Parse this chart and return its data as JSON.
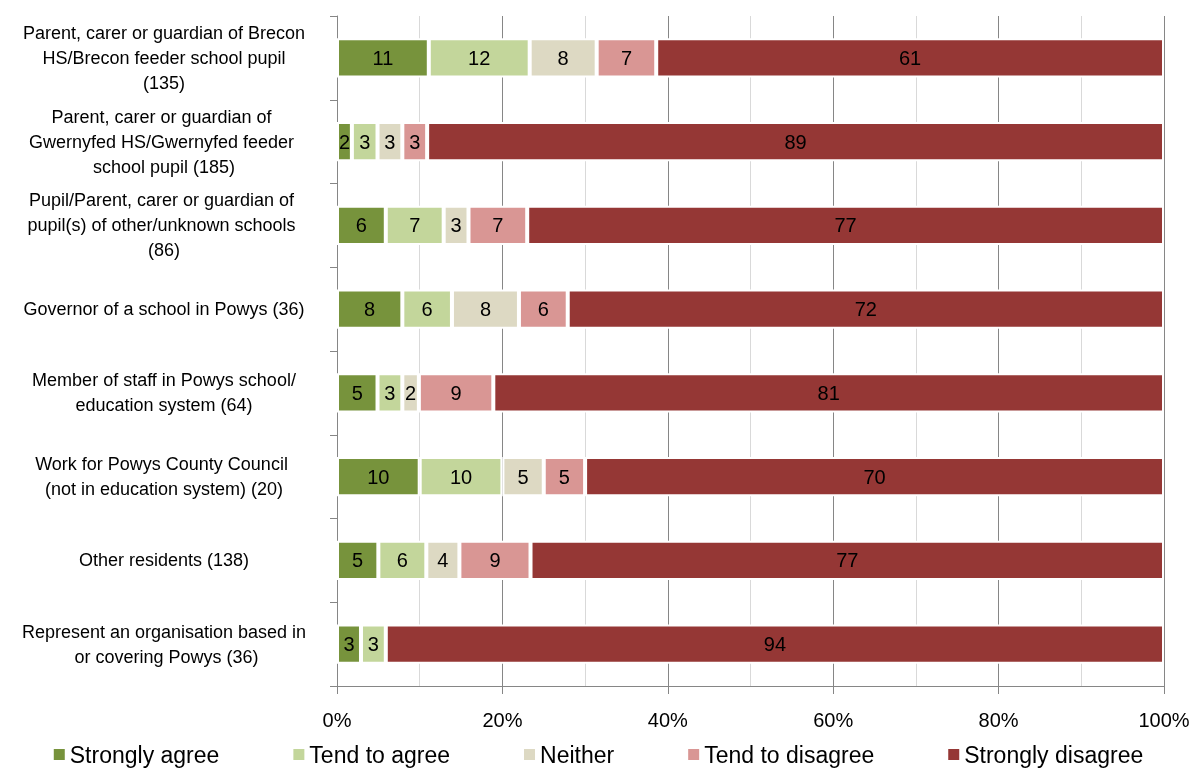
{
  "chart_data": {
    "type": "bar",
    "orientation": "horizontal",
    "stacked": true,
    "categories": [
      "Parent, carer or guardian of Brecon HS/Brecon feeder school pupil (135)",
      "Parent, carer or guardian of Gwernyfed HS/Gwernyfed feeder school pupil (185)",
      "Pupil/Parent, carer or guardian of pupil(s) of other/unknown schools (86)",
      "Governor of a school in Powys (36)",
      "Member of staff in Powys school/education system (64)",
      "Work for Powys County Council (not in education system) (20)",
      "Other residents (138)",
      "Represent an organisation based in or covering Powys (36)"
    ],
    "series": [
      {
        "name": "Strongly agree",
        "color": "#77933c",
        "values": [
          11.1,
          1.8,
          5.9,
          7.9,
          4.9,
          10,
          5.0,
          2.9
        ],
        "value_labels": [
          "11",
          "2",
          "6",
          "8",
          "5",
          "10",
          "5",
          "3"
        ]
      },
      {
        "name": "Tend to agree",
        "color": "#c3d69b",
        "values": [
          12.2,
          3.1,
          7.0,
          6.0,
          3.0,
          10,
          5.8,
          3.0
        ],
        "value_labels": [
          "12",
          "3",
          "7",
          "6",
          "3",
          "10",
          "6",
          "3"
        ]
      },
      {
        "name": "Neither",
        "color": "#ddd9c3",
        "values": [
          8.1,
          3.0,
          3.0,
          8.1,
          2.0,
          5,
          4.0,
          null
        ],
        "value_labels": [
          "8",
          "3",
          "3",
          "8",
          "2",
          "5",
          "4",
          null
        ]
      },
      {
        "name": "Tend to disagree",
        "color": "#d99694",
        "values": [
          7.2,
          3.0,
          7.1,
          5.9,
          9.0,
          5,
          8.6,
          null
        ],
        "value_labels": [
          "7",
          "3",
          "7",
          "6",
          "9",
          "5",
          "9",
          null
        ]
      },
      {
        "name": "Strongly disagree",
        "color": "#953735",
        "values": [
          61.4,
          89.1,
          77.0,
          72.1,
          81.1,
          70,
          76.6,
          94.1
        ],
        "value_labels": [
          "61",
          "89",
          "77",
          "72",
          "81",
          "70",
          "77",
          "94"
        ]
      }
    ],
    "xlim": [
      0,
      100
    ],
    "xticks": [
      {
        "value": 0,
        "label": "0%"
      },
      {
        "value": 20,
        "label": "20%"
      },
      {
        "value": 40,
        "label": "40%"
      },
      {
        "value": 60,
        "label": "60%"
      },
      {
        "value": 80,
        "label": "80%"
      },
      {
        "value": 100,
        "label": "100%"
      }
    ],
    "grid": "x",
    "legend": "bottom"
  }
}
